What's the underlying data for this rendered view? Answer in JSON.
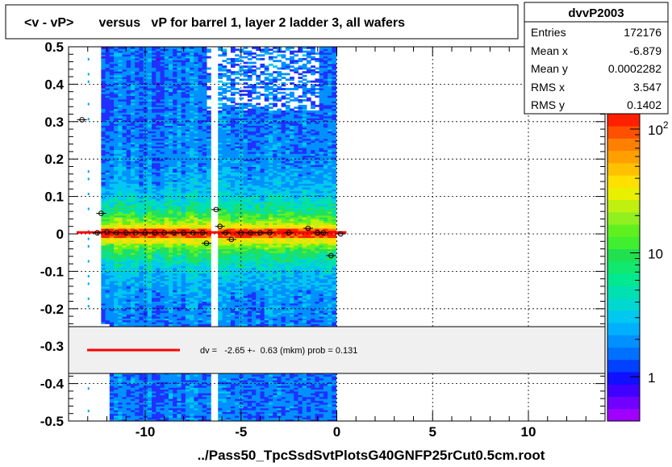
{
  "title": "<v - vP>       versus   vP for barrel 1, layer 2 ladder 3, all wafers",
  "footer": "../Pass50_TpcSsdSvtPlotsG40GNFP25rCut0.5cm.root",
  "stats": {
    "name": "dvvP2003",
    "rows": [
      {
        "label": "Entries",
        "value": "172176"
      },
      {
        "label": "Mean x",
        "value": "-6.879"
      },
      {
        "label": "Mean y",
        "value": "0.0002282"
      },
      {
        "label": "RMS x",
        "value": "3.547"
      },
      {
        "label": "RMS y",
        "value": "0.1402"
      }
    ]
  },
  "fit_legend": "dv =   -2.65 +-  0.63 (mkm) prob = 0.131",
  "colors": {
    "fit_line": "#ff0000",
    "legend_bg": "#f0f0f0"
  },
  "chart_data": {
    "type": "heatmap",
    "xlim": [
      -14,
      14
    ],
    "ylim": [
      -0.5,
      0.5
    ],
    "x_ticks": [
      -10,
      -5,
      0,
      5,
      10
    ],
    "y_ticks": [
      -0.5,
      -0.4,
      -0.3,
      -0.2,
      -0.1,
      0,
      0.1,
      0.2,
      0.3,
      0.4,
      0.5
    ],
    "x_tick_labels": [
      "-10",
      "-5",
      "0",
      "5",
      "10"
    ],
    "y_tick_labels": [
      "-0.5",
      "-0.4",
      "-0.3",
      "-0.2",
      "-0.1",
      "0",
      "0.1",
      "0.2",
      "0.3",
      "0.4",
      "0.5"
    ],
    "grid": true,
    "z_scale": "log",
    "colorbar_labels": [
      "1",
      "10",
      "10^2"
    ],
    "colorbar_values": [
      1,
      10,
      100
    ],
    "profile_points": [
      {
        "x": -13.3,
        "y": 0.305
      },
      {
        "x": -12.5,
        "y": 0.003
      },
      {
        "x": -12.3,
        "y": 0.055
      },
      {
        "x": -12.0,
        "y": 0.005
      },
      {
        "x": -11.5,
        "y": 0.003
      },
      {
        "x": -11.0,
        "y": 0.003
      },
      {
        "x": -10.5,
        "y": 0.003
      },
      {
        "x": -10.0,
        "y": 0.003
      },
      {
        "x": -9.5,
        "y": 0.003
      },
      {
        "x": -9.0,
        "y": 0.003
      },
      {
        "x": -8.5,
        "y": 0.003
      },
      {
        "x": -8.0,
        "y": 0.003
      },
      {
        "x": -7.5,
        "y": 0.003
      },
      {
        "x": -7.0,
        "y": 0.003
      },
      {
        "x": -6.8,
        "y": -0.025
      },
      {
        "x": -6.3,
        "y": 0.065
      },
      {
        "x": -6.1,
        "y": 0.02
      },
      {
        "x": -5.8,
        "y": 0.003
      },
      {
        "x": -5.5,
        "y": -0.015
      },
      {
        "x": -5.0,
        "y": 0.003
      },
      {
        "x": -4.5,
        "y": 0.003
      },
      {
        "x": -4.0,
        "y": 0.003
      },
      {
        "x": -3.5,
        "y": 0.003
      },
      {
        "x": -2.5,
        "y": 0.003
      },
      {
        "x": -1.5,
        "y": 0.015
      },
      {
        "x": -1.0,
        "y": 0.003
      },
      {
        "x": -0.7,
        "y": 0.003
      },
      {
        "x": -0.3,
        "y": -0.058
      },
      {
        "x": 0.2,
        "y": 0.0
      }
    ],
    "fit_line": {
      "x": [
        -14,
        0.5
      ],
      "y": [
        0.004,
        0.004
      ]
    }
  }
}
